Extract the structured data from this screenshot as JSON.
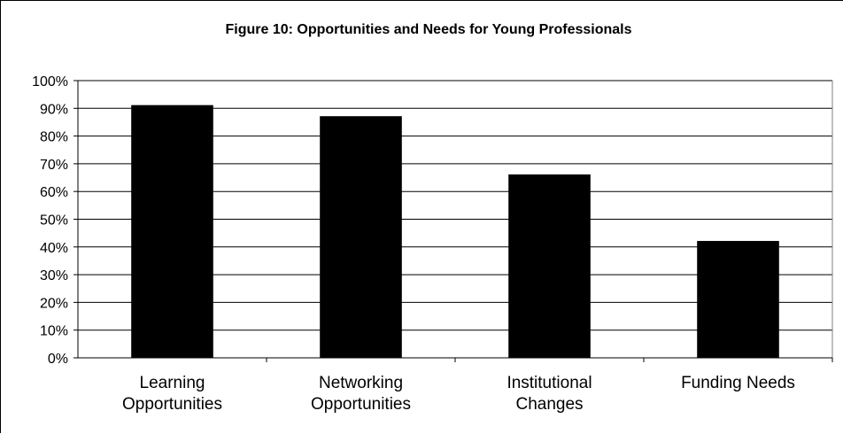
{
  "chart_data": {
    "type": "bar",
    "title": "Figure 10: Opportunities and Needs for Young Professionals",
    "categories": [
      [
        "Learning",
        "Opportunities"
      ],
      [
        "Networking",
        "Opportunities"
      ],
      [
        "Institutional",
        "Changes"
      ],
      [
        "Funding Needs"
      ]
    ],
    "values": [
      91,
      87,
      66,
      42
    ],
    "value_unit": "%",
    "ylim": [
      0,
      100
    ],
    "y_ticks": [
      "0%",
      "10%",
      "20%",
      "30%",
      "40%",
      "50%",
      "60%",
      "70%",
      "80%",
      "90%",
      "100%"
    ],
    "xlabel": "",
    "ylabel": "",
    "grid": true,
    "legend": "none",
    "bar_color": "#000000"
  }
}
